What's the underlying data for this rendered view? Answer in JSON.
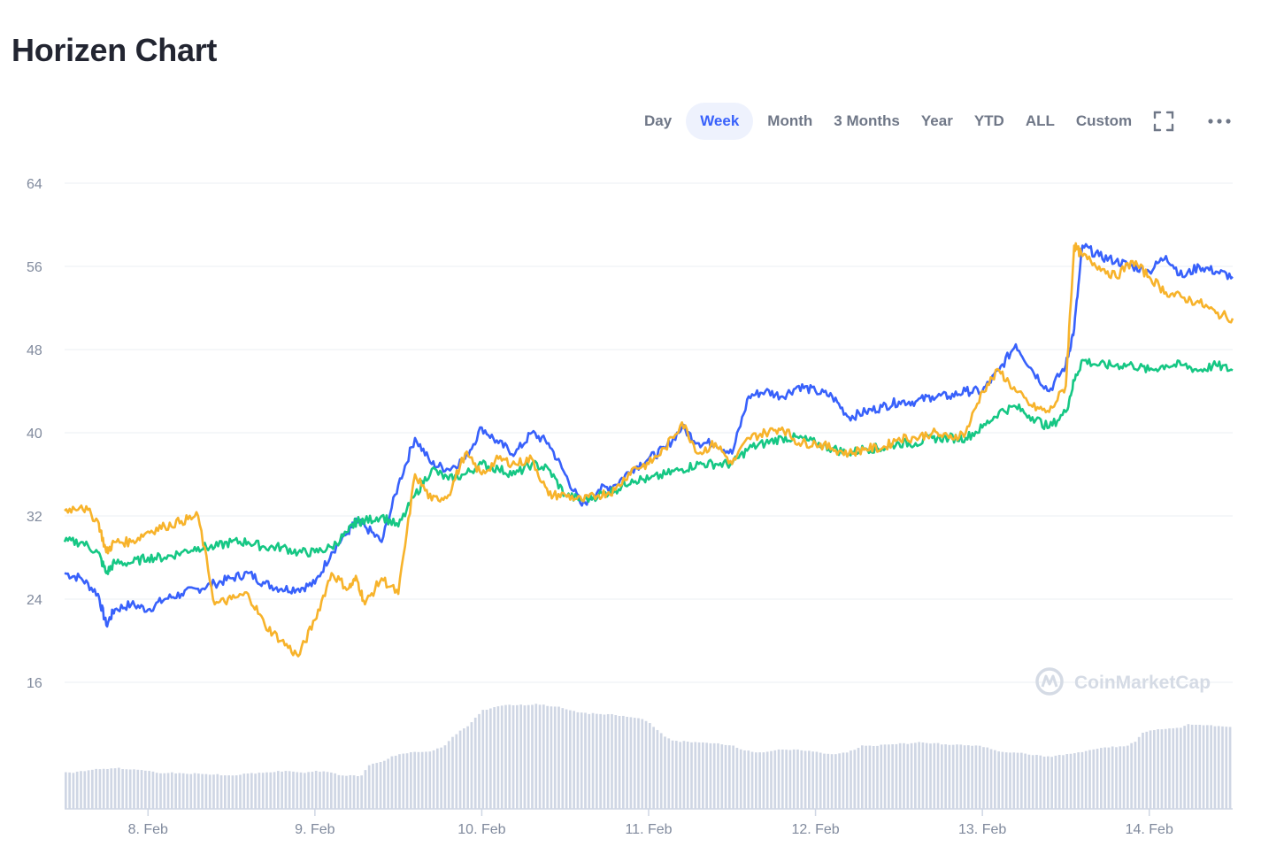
{
  "header": {
    "title": "Horizen Chart"
  },
  "toolbar": {
    "ranges": [
      "Day",
      "Week",
      "Month",
      "3 Months",
      "Year",
      "YTD",
      "ALL",
      "Custom"
    ],
    "active": "Week",
    "fullscreen_icon": "fullscreen-icon",
    "more_icon": "more-dots-icon"
  },
  "watermark": {
    "text": "CoinMarketCap",
    "icon": "coinmarketcap-logo-icon"
  },
  "colors": {
    "blue": "#3861fb",
    "green": "#16c784",
    "orange": "#f7b32b",
    "grid": "#eff2f5",
    "axis_text": "#808a9d",
    "volume": "#cfd6e4"
  },
  "chart_data": {
    "type": "line",
    "y_ticks": [
      16,
      24,
      32,
      40,
      48,
      56,
      64
    ],
    "ylim": [
      16,
      64
    ],
    "x_labels": [
      "8. Feb",
      "9. Feb",
      "10. Feb",
      "11. Feb",
      "12. Feb",
      "13. Feb",
      "14. Feb"
    ],
    "x_label_t": [
      0.5,
      1.5,
      2.5,
      3.5,
      4.5,
      5.5,
      6.5
    ],
    "x_range": [
      0,
      7.0
    ],
    "grid": true,
    "series": [
      {
        "color": "blue",
        "t": [
          0,
          0.1,
          0.2,
          0.25,
          0.3,
          0.4,
          0.5,
          0.6,
          0.7,
          0.8,
          0.9,
          1.0,
          1.1,
          1.2,
          1.3,
          1.4,
          1.5,
          1.6,
          1.7,
          1.75,
          1.8,
          1.9,
          2.0,
          2.1,
          2.2,
          2.3,
          2.4,
          2.5,
          2.6,
          2.7,
          2.8,
          2.9,
          3.0,
          3.1,
          3.2,
          3.3,
          3.4,
          3.5,
          3.6,
          3.7,
          3.8,
          3.9,
          4.0,
          4.1,
          4.2,
          4.3,
          4.4,
          4.5,
          4.6,
          4.7,
          4.8,
          4.9,
          5.0,
          5.1,
          5.2,
          5.3,
          5.4,
          5.5,
          5.6,
          5.7,
          5.8,
          5.9,
          6.0,
          6.05,
          6.1,
          6.2,
          6.3,
          6.4,
          6.5,
          6.6,
          6.7,
          6.8,
          6.9,
          7.0
        ],
        "values": [
          26.5,
          26,
          24.5,
          21.5,
          23,
          23.5,
          23,
          24,
          24.5,
          25,
          25.5,
          26,
          26.5,
          25.5,
          25,
          25,
          25.5,
          28.5,
          30.5,
          31.5,
          31,
          29.5,
          35,
          39.5,
          37,
          36.5,
          37.5,
          40.5,
          39,
          38,
          40,
          39,
          36,
          33,
          34.5,
          35,
          36.5,
          37.5,
          38.5,
          40.5,
          39,
          39,
          38,
          43.5,
          44,
          43.5,
          44.5,
          44,
          43.5,
          41.5,
          42,
          42.5,
          43,
          43,
          43.5,
          43.5,
          44,
          44,
          46,
          48.5,
          46,
          44,
          46.5,
          50,
          58,
          57,
          56.5,
          56,
          55.5,
          57,
          55,
          56,
          55.5,
          55
        ]
      },
      {
        "color": "green",
        "t": [
          0,
          0.1,
          0.2,
          0.25,
          0.3,
          0.4,
          0.5,
          0.6,
          0.7,
          0.8,
          0.9,
          1.0,
          1.1,
          1.2,
          1.3,
          1.4,
          1.5,
          1.6,
          1.7,
          1.75,
          1.8,
          1.9,
          2.0,
          2.1,
          2.2,
          2.3,
          2.4,
          2.5,
          2.6,
          2.7,
          2.8,
          2.9,
          3.0,
          3.1,
          3.2,
          3.3,
          3.4,
          3.5,
          3.6,
          3.7,
          3.8,
          3.9,
          4.0,
          4.1,
          4.2,
          4.3,
          4.4,
          4.5,
          4.6,
          4.7,
          4.8,
          4.9,
          5.0,
          5.1,
          5.2,
          5.3,
          5.4,
          5.5,
          5.6,
          5.7,
          5.8,
          5.9,
          6.0,
          6.05,
          6.1,
          6.2,
          6.3,
          6.4,
          6.5,
          6.6,
          6.7,
          6.8,
          6.9,
          7.0
        ],
        "values": [
          29.5,
          29.5,
          28.5,
          26.5,
          27.5,
          27.5,
          28,
          28,
          28.5,
          29,
          29,
          29.5,
          29.5,
          29,
          29,
          28.5,
          28.5,
          29,
          30.5,
          31.5,
          31.5,
          32,
          31,
          34,
          36.5,
          35.5,
          36,
          37,
          36.5,
          36,
          37,
          36.5,
          34,
          33.5,
          34,
          34.5,
          35.5,
          35.5,
          36,
          36.5,
          37,
          37,
          37,
          38.5,
          39,
          39.5,
          39.5,
          39,
          38.5,
          38,
          38.5,
          38.5,
          39,
          39,
          39.5,
          39.5,
          39.5,
          40.5,
          42,
          42.5,
          41.5,
          40.5,
          42,
          45,
          47,
          46.5,
          46.5,
          46.5,
          46,
          46.5,
          46.5,
          46,
          46.5,
          46
        ]
      },
      {
        "color": "orange",
        "t": [
          0,
          0.1,
          0.2,
          0.25,
          0.3,
          0.4,
          0.5,
          0.6,
          0.7,
          0.8,
          0.9,
          1.0,
          1.1,
          1.2,
          1.3,
          1.4,
          1.5,
          1.6,
          1.7,
          1.75,
          1.8,
          1.9,
          2.0,
          2.1,
          2.2,
          2.3,
          2.4,
          2.5,
          2.6,
          2.7,
          2.8,
          2.9,
          3.0,
          3.1,
          3.2,
          3.3,
          3.4,
          3.5,
          3.6,
          3.7,
          3.8,
          3.9,
          4.0,
          4.1,
          4.2,
          4.3,
          4.4,
          4.5,
          4.6,
          4.7,
          4.8,
          4.9,
          5.0,
          5.1,
          5.2,
          5.3,
          5.4,
          5.5,
          5.6,
          5.7,
          5.8,
          5.9,
          6.0,
          6.05,
          6.1,
          6.2,
          6.3,
          6.4,
          6.5,
          6.6,
          6.7,
          6.8,
          6.9,
          7.0
        ],
        "values": [
          32.5,
          33,
          31.5,
          28.5,
          29.5,
          29.5,
          30.5,
          31,
          31.5,
          32,
          23.5,
          24,
          24.5,
          21.5,
          20,
          18.5,
          22,
          26.5,
          25,
          26,
          23.5,
          26,
          24.5,
          36,
          33.5,
          34,
          38,
          36,
          37.5,
          37,
          37.5,
          34,
          34,
          33.5,
          34,
          34.5,
          36.5,
          37,
          38.5,
          41,
          38,
          39,
          37,
          39.5,
          40,
          40.5,
          39,
          39,
          38.5,
          38,
          38.5,
          38.5,
          39.5,
          39.5,
          40,
          39.5,
          40,
          44,
          46,
          44,
          42.5,
          42,
          44.5,
          58,
          57,
          56,
          55,
          56.5,
          55,
          53.5,
          53,
          52.5,
          51.5,
          51
        ]
      }
    ],
    "volume": [
      0.34,
      0.34,
      0.35,
      0.36,
      0.37,
      0.37,
      0.38,
      0.38,
      0.37,
      0.37,
      0.36,
      0.35,
      0.34,
      0.33,
      0.34,
      0.33,
      0.33,
      0.33,
      0.33,
      0.32,
      0.32,
      0.31,
      0.31,
      0.32,
      0.33,
      0.33,
      0.34,
      0.34,
      0.35,
      0.35,
      0.35,
      0.34,
      0.34,
      0.35,
      0.35,
      0.34,
      0.32,
      0.31,
      0.31,
      0.31,
      0.41,
      0.43,
      0.45,
      0.49,
      0.51,
      0.52,
      0.53,
      0.53,
      0.54,
      0.56,
      0.59,
      0.67,
      0.73,
      0.77,
      0.85,
      0.92,
      0.94,
      0.96,
      0.97,
      0.97,
      0.97,
      0.97,
      0.98,
      0.97,
      0.96,
      0.95,
      0.93,
      0.91,
      0.9,
      0.89,
      0.89,
      0.88,
      0.88,
      0.87,
      0.86,
      0.85,
      0.84,
      0.8,
      0.74,
      0.67,
      0.64,
      0.63,
      0.63,
      0.62,
      0.62,
      0.61,
      0.61,
      0.6,
      0.59,
      0.56,
      0.54,
      0.53,
      0.53,
      0.54,
      0.55,
      0.55,
      0.55,
      0.55,
      0.54,
      0.53,
      0.52,
      0.51,
      0.52,
      0.53,
      0.55,
      0.59,
      0.59,
      0.59,
      0.6,
      0.6,
      0.61,
      0.61,
      0.62,
      0.62,
      0.61,
      0.61,
      0.6,
      0.6,
      0.6,
      0.59,
      0.59,
      0.58,
      0.56,
      0.54,
      0.53,
      0.53,
      0.52,
      0.51,
      0.5,
      0.49,
      0.49,
      0.5,
      0.51,
      0.52,
      0.53,
      0.55,
      0.56,
      0.57,
      0.58,
      0.58,
      0.59,
      0.63,
      0.71,
      0.73,
      0.74,
      0.75,
      0.75,
      0.76,
      0.79,
      0.79,
      0.78,
      0.78,
      0.77,
      0.77
    ]
  }
}
